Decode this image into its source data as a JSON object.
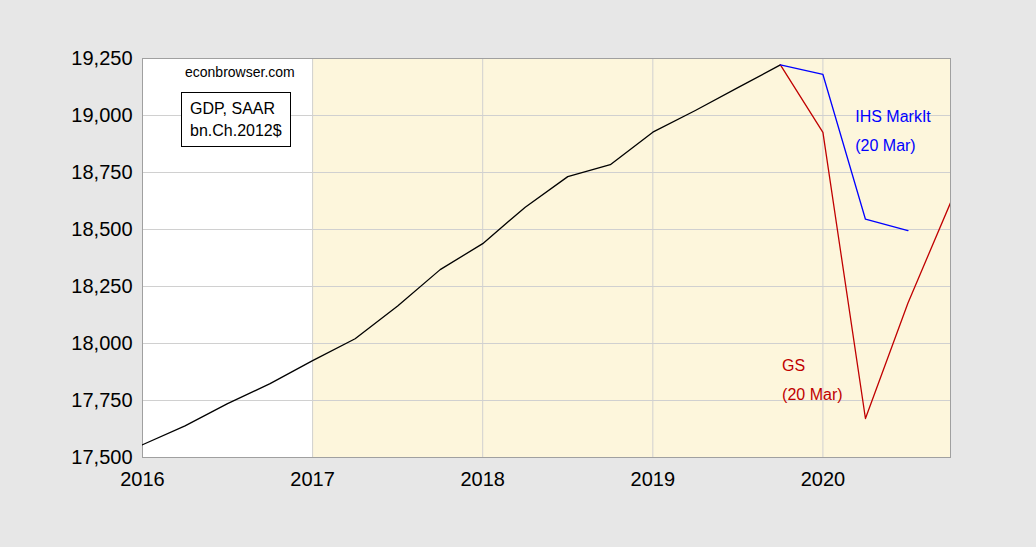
{
  "chart_data": {
    "type": "line",
    "source": "econbrowser.com",
    "units_label": [
      "GDP, SAAR",
      "bn.Ch.2012$"
    ],
    "x": [
      2016,
      2016.25,
      2016.5,
      2016.75,
      2017,
      2017.25,
      2017.5,
      2017.75,
      2018,
      2018.25,
      2018.5,
      2018.75,
      2019,
      2019.25,
      2019.5,
      2019.75,
      2020,
      2020.25,
      2020.5,
      2020.75
    ],
    "series": [
      {
        "color": "#000000",
        "values": [
          17556,
          17639,
          17736,
          17824,
          17925,
          18021,
          18164,
          18324,
          18438,
          18598,
          18732,
          18784,
          18927,
          19022,
          19122,
          19222,
          null,
          null,
          null,
          null
        ]
      },
      {
        "name": "GS",
        "date": "(20 Mar)",
        "color": "#c00000",
        "label_at": [
          2019.76,
          17855
        ],
        "values": [
          null,
          null,
          null,
          null,
          null,
          null,
          null,
          null,
          null,
          null,
          null,
          null,
          null,
          null,
          null,
          19222,
          18926,
          17671,
          18178,
          18617
        ]
      },
      {
        "name": "IHS MarkIt",
        "date": "(20 Mar)",
        "color": "#0000ff",
        "label_at": [
          2020.19,
          18947
        ],
        "values": [
          null,
          null,
          null,
          null,
          null,
          null,
          null,
          null,
          null,
          null,
          null,
          null,
          null,
          null,
          null,
          19222,
          19180,
          18545,
          18495,
          null
        ]
      }
    ],
    "xlim": [
      2016,
      2020.75
    ],
    "xticks": [
      2016,
      2017,
      2018,
      2019,
      2020
    ],
    "ylim": [
      17500,
      19250
    ],
    "yticks": [
      {
        "value": 17500,
        "label": "17,500"
      },
      {
        "value": 17750,
        "label": "17,750"
      },
      {
        "value": 18000,
        "label": "18,000"
      },
      {
        "value": 18250,
        "label": "18,250"
      },
      {
        "value": 18500,
        "label": "18,500"
      },
      {
        "value": 18750,
        "label": "18,750"
      },
      {
        "value": 19000,
        "label": "19,000"
      },
      {
        "value": 19250,
        "label": "19,250"
      }
    ],
    "shade": {
      "from": 2017,
      "color": "#fdf6dc"
    },
    "grid": true
  }
}
